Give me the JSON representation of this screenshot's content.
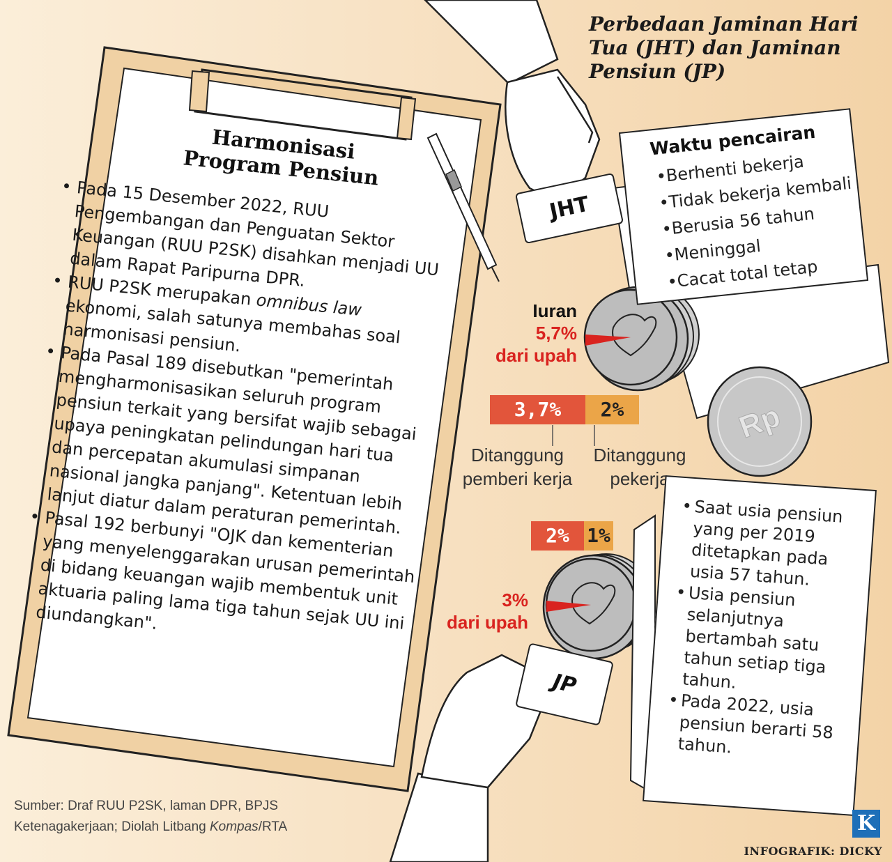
{
  "title": "Perbedaan Jaminan Hari Tua (JHT) dan Jaminan Pensiun (JP)",
  "clipboard": {
    "title_line1": "Harmonisasi",
    "title_line2": "Program Pensiun",
    "bullet1": "Pada 15 Desember 2022, RUU Pengembangan dan Penguatan Sektor Keuangan (RUU P2SK) disahkan menjadi UU dalam Rapat Paripurna DPR.",
    "bullet2_a": "RUU P2SK merupakan ",
    "bullet2_em": "omnibus law",
    "bullet2_b": " ekonomi, salah satunya membahas soal harmonisasi pensiun.",
    "bullet3": "Pada Pasal 189 disebutkan \"pemerintah mengharmonisasikan seluruh program pensiun terkait yang bersifat wajib sebagai upaya peningkatan pelindungan hari tua dan percepatan akumulasi simpanan nasional jangka panjang\". Ketentuan lebih lanjut diatur dalam peraturan pemerintah.",
    "bullet4": "Pasal 192 berbunyi \"OJK dan kementerian yang menyelenggarakan urusan pemerintah di bidang keuangan wajib membentuk unit aktuaria paling lama tiga tahun sejak UU ini diundangkan\"."
  },
  "jht": {
    "tag": "JHT",
    "card_title": "Waktu pencairan",
    "items": [
      "Berhenti bekerja",
      "Tidak bekerja kembali",
      "Berusia 56 tahun",
      "Meninggal",
      "Cacat total tetap"
    ],
    "iuran_label": "Iuran",
    "iuran_value": "5,7%",
    "iuran_suffix": "dari upah",
    "split_employer": "3,7%",
    "split_worker": "2%"
  },
  "split_labels": {
    "employer": "Ditanggung pemberi kerja",
    "worker": "Ditanggung pekerja"
  },
  "jp": {
    "tag": "JP",
    "iuran_value": "3%",
    "iuran_suffix": "dari upah",
    "split_employer": "2%",
    "split_worker": "1%",
    "items": [
      "Saat usia pensiun yang per 2019 ditetapkan pada usia 57 tahun.",
      "Usia pensiun selanjutnya bertambah satu tahun setiap tiga tahun.",
      "Pada 2022, usia pensiun berarti 58 tahun."
    ]
  },
  "coin_symbol": "Rp",
  "source_line1": "Sumber: Draf RUU P2SK, laman DPR, BPJS",
  "source_line2_a": "Ketenagakerjaan; Diolah Litbang ",
  "source_line2_em": "Kompas",
  "source_line2_b": "/RTA",
  "logo_letter": "K",
  "credit": "INFOGRAFIK: DICKY",
  "colors": {
    "red": "#d9231f",
    "bar_red": "#e2553b",
    "bar_orange": "#eba548",
    "board": "#f0d1a4",
    "coin": "#bdbdbd"
  }
}
